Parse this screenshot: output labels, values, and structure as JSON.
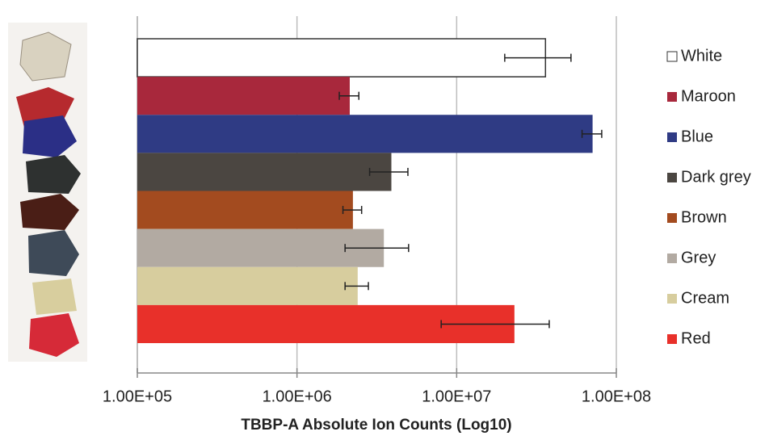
{
  "chart_data": {
    "type": "bar",
    "orientation": "horizontal",
    "log_scale": true,
    "grid": true,
    "legend": "right",
    "x_label": "TBBP-A Absolute Ion Counts (Log10)",
    "categories": [
      "White",
      "Maroon",
      "Blue",
      "Dark grey",
      "Brown",
      "Grey",
      "Cream",
      "Red"
    ],
    "values": [
      36000000,
      2140000,
      71000000,
      3900000,
      2240000,
      3500000,
      2400000,
      23000000
    ],
    "errors": [
      16000000,
      300000,
      10000000,
      1050000,
      300000,
      1500000,
      400000,
      15000000
    ],
    "colors": [
      "#ffffff",
      "#a8283c",
      "#2f3b84",
      "#4b4641",
      "#a34b1f",
      "#b2aaa2",
      "#d7cd9e",
      "#e8302a"
    ],
    "xlim": [
      100000,
      100000000
    ],
    "xticks": [
      {
        "value": 100000,
        "label": "1.00E+05"
      },
      {
        "value": 1000000,
        "label": "1.00E+06"
      },
      {
        "value": 10000000,
        "label": "1.00E+07"
      },
      {
        "value": 100000000,
        "label": "1.00E+08"
      }
    ]
  }
}
